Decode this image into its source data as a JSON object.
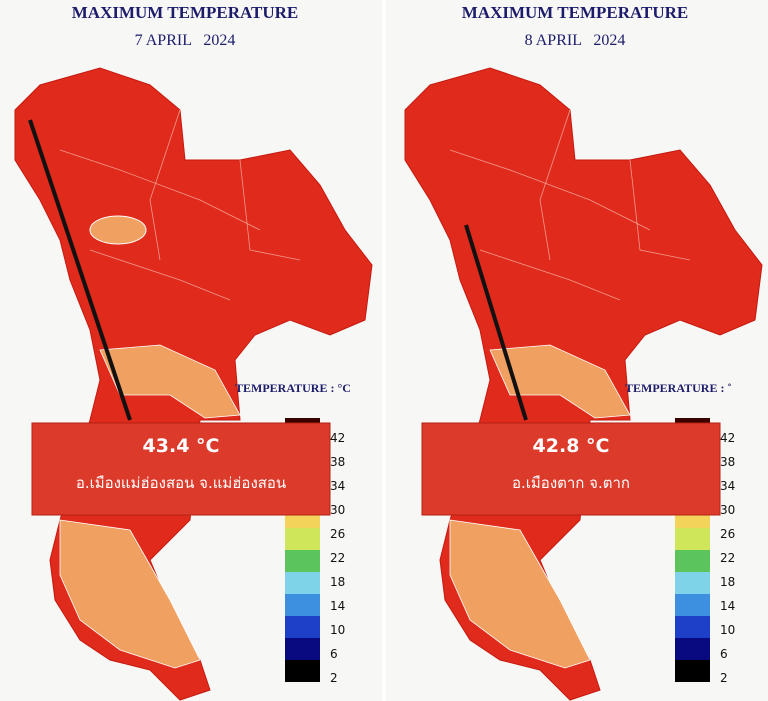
{
  "panels": [
    {
      "title": "MAXIMUM TEMPERATURE",
      "date": "7 APRIL   2024",
      "legend_label": "TEMPERATURE : °C",
      "legend_ticks": [
        42,
        38,
        34,
        30,
        26,
        22,
        18,
        14,
        10,
        6,
        2
      ],
      "callout": {
        "value": "43.4 °C",
        "place": "อ.เมืองแม่ฮ่องสอน จ.แม่ฮ่องสอน"
      }
    },
    {
      "title": "MAXIMUM TEMPERATURE",
      "date": "8 APRIL   2024",
      "legend_label": "TEMPERATURE : ˚",
      "legend_ticks": [
        42,
        38,
        34,
        30,
        26,
        22,
        18,
        14,
        10,
        6,
        2
      ],
      "callout": {
        "value": "42.8 °C",
        "place": "อ.เมืองตาก จ.ตาก"
      }
    }
  ]
}
